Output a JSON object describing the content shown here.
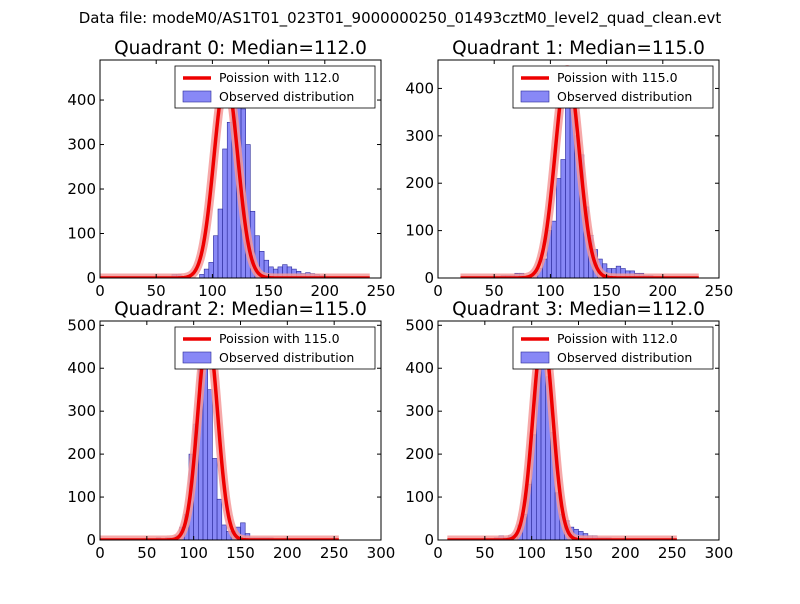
{
  "figure": {
    "suptitle": "Data file: modeM0/AS1T01_023T01_9000000250_01493cztM0_level2_quad_clean.evt"
  },
  "colors": {
    "bar_fill": "#7b7bf5",
    "bar_edge": "#2a2a9a",
    "curve": "#ee0000",
    "curve_glow": "#f49a9a",
    "axis": "#000000"
  },
  "chart_data": [
    {
      "type": "bar",
      "title": "Quadrant 0: Median=112.0",
      "xlabel": "",
      "ylabel": "",
      "xlim": [
        0,
        250
      ],
      "ylim": [
        0,
        490
      ],
      "xticks": [
        0,
        50,
        100,
        150,
        200,
        250
      ],
      "yticks": [
        0,
        100,
        200,
        300,
        400
      ],
      "legend_placement": "top-right",
      "legend": {
        "curve_label": "Poission with 112.0",
        "bars_label": "Observed distribution"
      },
      "bin_edges_start": 64,
      "bin_width": 4.1,
      "values": [
        8,
        8,
        0,
        0,
        0,
        0,
        8,
        20,
        35,
        95,
        155,
        290,
        350,
        445,
        445,
        380,
        300,
        150,
        95,
        60,
        40,
        25,
        20,
        25,
        30,
        25,
        20,
        15,
        10,
        12,
        10,
        8,
        5
      ],
      "curve": {
        "label": "Poission with 112.0",
        "mean": 112.0,
        "peak": 450,
        "x_range": [
          0,
          240
        ]
      }
    },
    {
      "type": "bar",
      "title": "Quadrant 1: Median=115.0",
      "xlabel": "",
      "ylabel": "",
      "xlim": [
        0,
        250
      ],
      "ylim": [
        0,
        460
      ],
      "xticks": [
        0,
        50,
        100,
        150,
        200,
        250
      ],
      "yticks": [
        0,
        100,
        200,
        300,
        400
      ],
      "legend_placement": "top-right",
      "legend": {
        "curve_label": "Poission with 115.0",
        "bars_label": "Observed distribution"
      },
      "bin_edges_start": 56,
      "bin_width": 4.1,
      "values": [
        5,
        5,
        5,
        10,
        10,
        0,
        0,
        10,
        20,
        40,
        100,
        120,
        210,
        250,
        440,
        420,
        300,
        260,
        150,
        90,
        60,
        40,
        30,
        20,
        20,
        25,
        20,
        15,
        15,
        10,
        10,
        5,
        5
      ],
      "curve": {
        "label": "Poission with 115.0",
        "mean": 115.0,
        "peak": 440,
        "x_range": [
          20,
          232
        ]
      }
    },
    {
      "type": "bar",
      "title": "Quadrant 2: Median=115.0",
      "xlabel": "",
      "ylabel": "",
      "xlim": [
        0,
        300
      ],
      "ylim": [
        0,
        510
      ],
      "xticks": [
        0,
        50,
        100,
        150,
        200,
        250,
        300
      ],
      "yticks": [
        0,
        100,
        200,
        300,
        400,
        500
      ],
      "legend_placement": "top-right",
      "legend": {
        "curve_label": "Poission with 115.0",
        "bars_label": "Observed distribution"
      },
      "bin_edges_start": 60,
      "bin_width": 5,
      "values": [
        5,
        0,
        5,
        5,
        10,
        30,
        60,
        200,
        270,
        420,
        480,
        350,
        190,
        95,
        35,
        20,
        20,
        30,
        40,
        15,
        5,
        5,
        5,
        5,
        5
      ],
      "curve": {
        "label": "Poission with 115.0",
        "mean": 115.0,
        "peak": 480,
        "x_range": [
          0,
          255
        ]
      }
    },
    {
      "type": "bar",
      "title": "Quadrant 3: Median=112.0",
      "xlabel": "",
      "ylabel": "",
      "xlim": [
        0,
        300
      ],
      "ylim": [
        0,
        510
      ],
      "xticks": [
        0,
        50,
        100,
        150,
        200,
        250,
        300
      ],
      "yticks": [
        0,
        100,
        200,
        300,
        400,
        500
      ],
      "legend_placement": "top-right",
      "legend": {
        "curve_label": "Poission with 112.0",
        "bars_label": "Observed distribution"
      },
      "bin_edges_start": 60,
      "bin_width": 5,
      "values": [
        5,
        10,
        5,
        10,
        10,
        35,
        60,
        130,
        245,
        410,
        480,
        380,
        250,
        110,
        60,
        45,
        30,
        25,
        20,
        15,
        10,
        10,
        5,
        5,
        5
      ],
      "curve": {
        "label": "Poission with 112.0",
        "mean": 112.0,
        "peak": 480,
        "x_range": [
          10,
          255
        ]
      }
    }
  ]
}
